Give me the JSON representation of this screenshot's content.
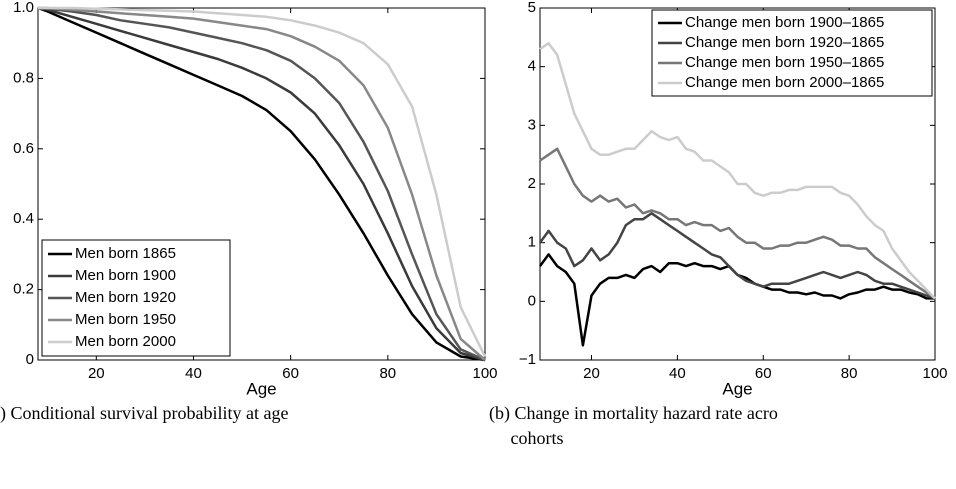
{
  "chart_data": [
    {
      "type": "line",
      "caption": ") Conditional survival probability at age",
      "xlabel": "Age",
      "x": [
        8,
        10,
        15,
        20,
        25,
        30,
        35,
        40,
        45,
        50,
        55,
        60,
        65,
        70,
        75,
        80,
        85,
        90,
        95,
        100
      ],
      "xlim": [
        8,
        100
      ],
      "xticks": [
        20,
        40,
        60,
        80,
        100
      ],
      "ylim": [
        0,
        1
      ],
      "yticks": [
        0,
        0.2,
        0.4,
        0.6,
        0.8,
        {
          "value": 1,
          "label": "1.0"
        }
      ],
      "legend": "lower left",
      "series": [
        {
          "name": "Men born 1865",
          "color": "#000000",
          "values": [
            1.0,
            0.99,
            0.96,
            0.93,
            0.9,
            0.87,
            0.84,
            0.81,
            0.78,
            0.75,
            0.71,
            0.65,
            0.57,
            0.47,
            0.36,
            0.24,
            0.13,
            0.05,
            0.01,
            0.0
          ]
        },
        {
          "name": "Men born 1900",
          "color": "#3a3a3a",
          "values": [
            1.0,
            0.995,
            0.975,
            0.955,
            0.935,
            0.915,
            0.895,
            0.875,
            0.855,
            0.83,
            0.8,
            0.76,
            0.7,
            0.61,
            0.5,
            0.36,
            0.21,
            0.09,
            0.02,
            0.0
          ]
        },
        {
          "name": "Men born 1920",
          "color": "#555555",
          "values": [
            1.0,
            0.998,
            0.99,
            0.98,
            0.965,
            0.955,
            0.945,
            0.93,
            0.915,
            0.9,
            0.88,
            0.85,
            0.8,
            0.73,
            0.62,
            0.48,
            0.3,
            0.13,
            0.03,
            0.0
          ]
        },
        {
          "name": "Men born 1950",
          "color": "#888888",
          "values": [
            1.0,
            1.0,
            0.995,
            0.99,
            0.985,
            0.98,
            0.975,
            0.97,
            0.96,
            0.95,
            0.94,
            0.92,
            0.89,
            0.85,
            0.78,
            0.66,
            0.47,
            0.24,
            0.06,
            0.0
          ]
        },
        {
          "name": "Men born 2000",
          "color": "#cccccc",
          "values": [
            1.0,
            1.0,
            1.0,
            0.998,
            0.996,
            0.994,
            0.992,
            0.99,
            0.985,
            0.98,
            0.975,
            0.965,
            0.95,
            0.93,
            0.9,
            0.84,
            0.72,
            0.47,
            0.15,
            0.01
          ]
        }
      ]
    },
    {
      "type": "line",
      "caption": [
        "(b) Change in mortality hazard rate acro",
        "cohorts"
      ],
      "xlabel": "Age",
      "x": [
        8,
        10,
        12,
        14,
        16,
        18,
        20,
        22,
        24,
        26,
        28,
        30,
        32,
        34,
        36,
        38,
        40,
        42,
        44,
        46,
        48,
        50,
        52,
        54,
        56,
        58,
        60,
        62,
        64,
        66,
        68,
        70,
        72,
        74,
        76,
        78,
        80,
        82,
        84,
        86,
        88,
        90,
        92,
        94,
        96,
        98,
        100
      ],
      "xlim": [
        8,
        100
      ],
      "xticks": [
        20,
        40,
        60,
        80,
        100
      ],
      "ylim": [
        -1,
        5
      ],
      "yticks": [
        {
          "value": -1,
          "label": "−1"
        },
        0,
        1,
        2,
        3,
        4,
        5
      ],
      "legend": "upper right",
      "series": [
        {
          "name": "Change men born 1900–1865",
          "color": "#000000",
          "values": [
            0.6,
            0.8,
            0.6,
            0.5,
            0.3,
            -0.75,
            0.1,
            0.3,
            0.4,
            0.4,
            0.45,
            0.4,
            0.55,
            0.6,
            0.5,
            0.65,
            0.65,
            0.6,
            0.65,
            0.6,
            0.6,
            0.55,
            0.6,
            0.45,
            0.4,
            0.3,
            0.25,
            0.2,
            0.2,
            0.15,
            0.15,
            0.12,
            0.15,
            0.1,
            0.1,
            0.05,
            0.12,
            0.15,
            0.2,
            0.2,
            0.25,
            0.2,
            0.2,
            0.15,
            0.12,
            0.05,
            0.05
          ]
        },
        {
          "name": "Change men born 1920–1865",
          "color": "#444444",
          "values": [
            1.0,
            1.2,
            1.0,
            0.9,
            0.6,
            0.7,
            0.9,
            0.7,
            0.8,
            1.0,
            1.3,
            1.4,
            1.4,
            1.5,
            1.4,
            1.3,
            1.2,
            1.1,
            1.0,
            0.9,
            0.8,
            0.75,
            0.6,
            0.45,
            0.35,
            0.3,
            0.25,
            0.3,
            0.3,
            0.3,
            0.35,
            0.4,
            0.45,
            0.5,
            0.45,
            0.4,
            0.45,
            0.5,
            0.45,
            0.35,
            0.3,
            0.3,
            0.25,
            0.2,
            0.15,
            0.1,
            0.05
          ]
        },
        {
          "name": "Change men born 1950–1865",
          "color": "#777777",
          "values": [
            2.4,
            2.5,
            2.6,
            2.3,
            2.0,
            1.8,
            1.7,
            1.8,
            1.7,
            1.75,
            1.6,
            1.65,
            1.5,
            1.55,
            1.5,
            1.4,
            1.4,
            1.3,
            1.35,
            1.3,
            1.3,
            1.2,
            1.25,
            1.1,
            1.0,
            1.0,
            0.9,
            0.9,
            0.95,
            0.95,
            1.0,
            1.0,
            1.05,
            1.1,
            1.05,
            0.95,
            0.95,
            0.9,
            0.9,
            0.75,
            0.65,
            0.55,
            0.45,
            0.35,
            0.25,
            0.15,
            0.05
          ]
        },
        {
          "name": "Change men born 2000–1865",
          "color": "#cccccc",
          "values": [
            4.3,
            4.4,
            4.2,
            3.7,
            3.2,
            2.9,
            2.6,
            2.5,
            2.5,
            2.55,
            2.6,
            2.6,
            2.75,
            2.9,
            2.8,
            2.75,
            2.8,
            2.6,
            2.55,
            2.4,
            2.4,
            2.3,
            2.2,
            2.0,
            2.0,
            1.85,
            1.8,
            1.85,
            1.85,
            1.9,
            1.9,
            1.95,
            1.95,
            1.95,
            1.95,
            1.85,
            1.8,
            1.65,
            1.45,
            1.3,
            1.2,
            0.9,
            0.7,
            0.5,
            0.35,
            0.2,
            0.05
          ]
        }
      ]
    }
  ]
}
